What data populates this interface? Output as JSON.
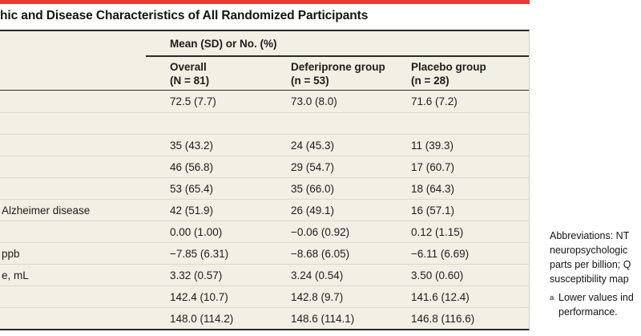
{
  "title": "hic and Disease Characteristics of All Randomized Participants",
  "colors": {
    "accent_red": "#e8393c",
    "table_background": "#f2f0e4",
    "rule_dark": "#2b2a28",
    "row_separator": "#dcd9c9",
    "text": "#1c1c1a"
  },
  "table": {
    "spanner": "Mean (SD) or No. (%)",
    "columns": [
      {
        "line1": "Overall",
        "line2": "(N = 81)"
      },
      {
        "line1": "Deferiprone group",
        "line2": "(n = 53)"
      },
      {
        "line1": "Placebo group",
        "line2": "(n = 28)"
      }
    ],
    "rows": [
      {
        "label": "",
        "overall": "72.5 (7.7)",
        "deferiprone": "73.0 (8.0)",
        "placebo": "71.6 (7.2)"
      },
      {
        "label": "",
        "overall": "",
        "deferiprone": "",
        "placebo": ""
      },
      {
        "label": "",
        "overall": "35 (43.2)",
        "deferiprone": "24 (45.3)",
        "placebo": "11 (39.3)"
      },
      {
        "label": "",
        "overall": "46 (56.8)",
        "deferiprone": "29 (54.7)",
        "placebo": "17 (60.7)"
      },
      {
        "label": "",
        "overall": "53 (65.4)",
        "deferiprone": "35 (66.0)",
        "placebo": "18 (64.3)"
      },
      {
        "label": "Alzheimer disease",
        "overall": "42 (51.9)",
        "deferiprone": "26 (49.1)",
        "placebo": "16 (57.1)"
      },
      {
        "label": "",
        "overall": "0.00 (1.00)",
        "deferiprone": "−0.06 (0.92)",
        "placebo": "0.12 (1.15)"
      },
      {
        "label": "ppb",
        "overall": "−7.85 (6.31)",
        "deferiprone": "−8.68 (6.05)",
        "placebo": "−6.11 (6.69)"
      },
      {
        "label": "e, mL",
        "overall": "3.32 (0.57)",
        "deferiprone": "3.24 (0.54)",
        "placebo": "3.50 (0.60)"
      },
      {
        "label": "",
        "overall": "142.4 (10.7)",
        "deferiprone": "142.8 (9.7)",
        "placebo": "141.6 (12.4)"
      },
      {
        "label": "",
        "overall": "148.0 (114.2)",
        "deferiprone": "148.6 (114.1)",
        "placebo": "146.8 (116.6)"
      }
    ]
  },
  "annotation": {
    "abbrev_lines": [
      "Abbreviations: NT",
      "neuropsychologic",
      "parts per billion; Q",
      "susceptibility map"
    ],
    "footnote_marker": "a",
    "footnote_lines": [
      "Lower values ind",
      "performance."
    ]
  }
}
